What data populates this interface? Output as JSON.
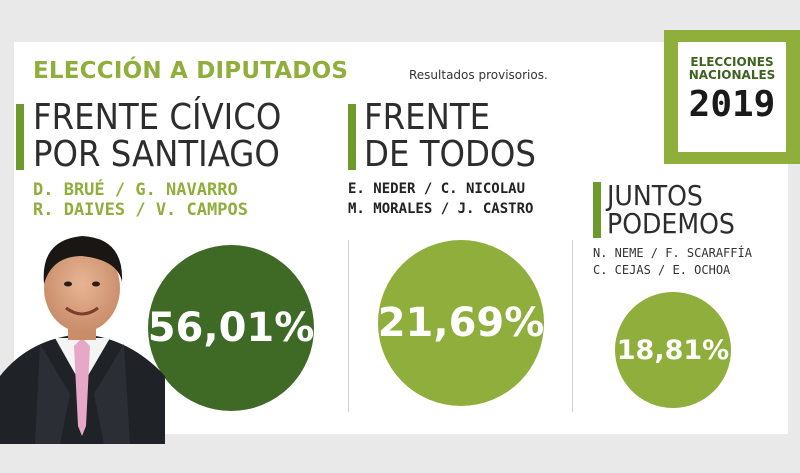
{
  "header": {
    "title": "ELECCIÓN A DIPUTADOS",
    "subtitle": "Resultados provisorios."
  },
  "badge": {
    "line1": "ELECCIONES",
    "line2": "NACIONALES",
    "year": "2019"
  },
  "parties": [
    {
      "name_line1": "FRENTE CÍVICO",
      "name_line2": "POR SANTIAGO",
      "candidates_line1": "D. BRUÉ / G. NAVARRO",
      "candidates_line2": "R. DAIVES / V. CAMPOS",
      "percent": "56,01%",
      "percent_value": 56.01,
      "color": "#3e6a26"
    },
    {
      "name_line1": "FRENTE",
      "name_line2": "DE TODOS",
      "candidates_line1": "E. NEDER / C. NICOLAU",
      "candidates_line2": "M. MORALES / J. CASTRO",
      "percent": "21,69%",
      "percent_value": 21.69,
      "color": "#8fae3b"
    },
    {
      "name_line1": "JUNTOS",
      "name_line2": "PODEMOS",
      "candidates_line1": "N. NEME / F. SCARAFFÍA",
      "candidates_line2": "C. CEJAS / E. OCHOA",
      "percent": "18,81%",
      "percent_value": 18.81,
      "color": "#8fae3b"
    }
  ],
  "colors": {
    "accent": "#8fae3b",
    "dark_green": "#3e6a26",
    "bar_green": "#6e9a2c"
  }
}
